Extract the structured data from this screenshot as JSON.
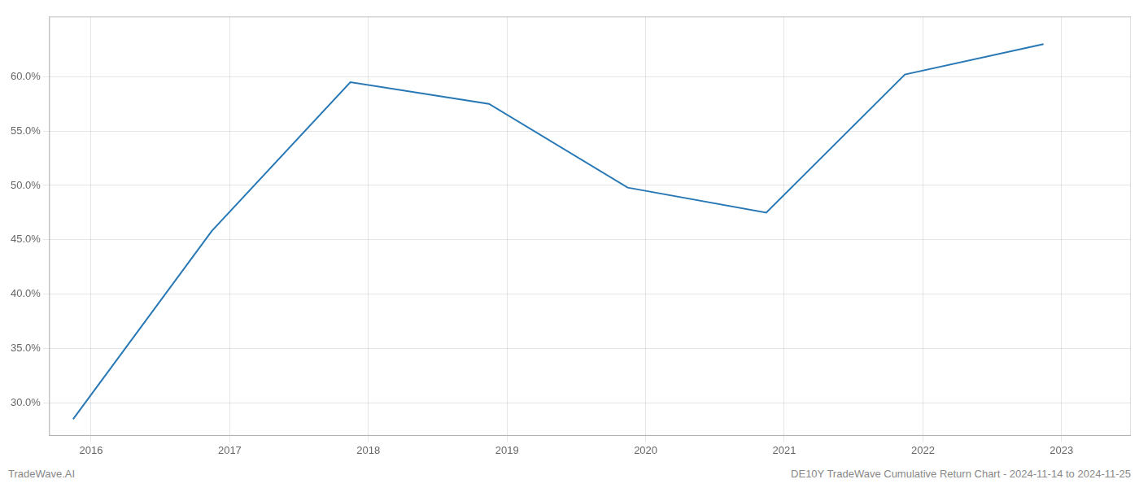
{
  "chart_data": {
    "type": "line",
    "x": [
      2015.87,
      2016.87,
      2017.87,
      2018.87,
      2019.87,
      2020.87,
      2021.87,
      2022.87
    ],
    "values": [
      28.5,
      45.8,
      59.5,
      57.5,
      49.8,
      47.5,
      60.2,
      63.0
    ],
    "color": "#2878b5",
    "xlim": [
      2015.7,
      2023.5
    ],
    "xticks": [
      2016,
      2017,
      2018,
      2019,
      2020,
      2021,
      2022,
      2023
    ],
    "ylim": [
      27.0,
      65.5
    ],
    "yticks": [
      {
        "value": 30.0,
        "label": "30.0%"
      },
      {
        "value": 35.0,
        "label": "35.0%"
      },
      {
        "value": 40.0,
        "label": "40.0%"
      },
      {
        "value": 45.0,
        "label": "45.0%"
      },
      {
        "value": 50.0,
        "label": "50.0%"
      },
      {
        "value": 55.0,
        "label": "55.0%"
      },
      {
        "value": 60.0,
        "label": "60.0%"
      }
    ],
    "grid": true,
    "annotations": [
      "TradeWave.AI",
      "DE10Y TradeWave Cumulative Return Chart - 2024-11-14 to 2024-11-25"
    ]
  }
}
